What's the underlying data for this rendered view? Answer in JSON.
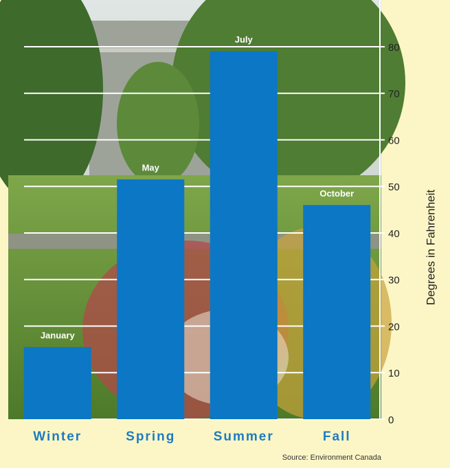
{
  "chart_data": {
    "type": "bar",
    "categories": [
      "Winter",
      "Spring",
      "Summer",
      "Fall"
    ],
    "values": [
      15.5,
      51.5,
      79,
      46
    ],
    "bar_labels": [
      "January",
      "May",
      "July",
      "October"
    ],
    "color": "#0b77c5",
    "ylim": [
      0,
      80
    ],
    "yticks": [
      0,
      10,
      20,
      30,
      40,
      50,
      60,
      70,
      80
    ],
    "grid": true,
    "y_label": "Degrees in Fahrenheit",
    "source": "Source: Environment Canada"
  }
}
